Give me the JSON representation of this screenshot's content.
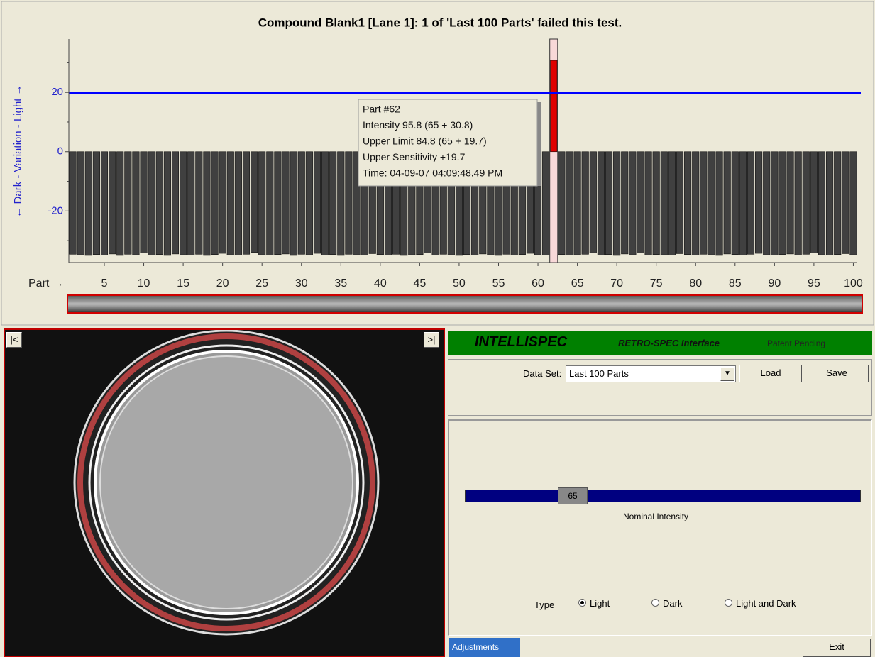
{
  "chart_data": {
    "type": "bar",
    "title": "Compound Blank1 [Lane 1]:   1 of  'Last 100 Parts'  failed this test.",
    "x_label": "Part →",
    "y_label": "← Dark - Variation - Light →",
    "x": [
      1,
      2,
      3,
      4,
      5,
      6,
      7,
      8,
      9,
      10,
      11,
      12,
      13,
      14,
      15,
      16,
      17,
      18,
      19,
      20,
      21,
      22,
      23,
      24,
      25,
      26,
      27,
      28,
      29,
      30,
      31,
      32,
      33,
      34,
      35,
      36,
      37,
      38,
      39,
      40,
      41,
      42,
      43,
      44,
      45,
      46,
      47,
      48,
      49,
      50,
      51,
      52,
      53,
      54,
      55,
      56,
      57,
      58,
      59,
      60,
      61,
      62,
      63,
      64,
      65,
      66,
      67,
      68,
      69,
      70,
      71,
      72,
      73,
      74,
      75,
      76,
      77,
      78,
      79,
      80,
      81,
      82,
      83,
      84,
      85,
      86,
      87,
      88,
      89,
      90,
      91,
      92,
      93,
      94,
      95,
      96,
      97,
      98,
      99,
      100
    ],
    "values": [
      -34.6,
      -34.8,
      -35.0,
      -34.7,
      -34.9,
      -34.5,
      -35.0,
      -34.6,
      -34.8,
      -34.2,
      -34.9,
      -34.7,
      -35.0,
      -34.5,
      -34.8,
      -34.9,
      -34.6,
      -35.0,
      -34.7,
      -34.3,
      -34.8,
      -34.9,
      -34.6,
      -34.0,
      -34.8,
      -34.9,
      -34.7,
      -34.5,
      -35.0,
      -34.6,
      -34.8,
      -34.3,
      -34.9,
      -34.7,
      -35.0,
      -34.6,
      -34.8,
      -34.9,
      -34.4,
      -34.7,
      -34.9,
      -34.6,
      -35.0,
      -34.8,
      -34.7,
      -34.2,
      -34.9,
      -34.6,
      -34.8,
      -35.0,
      -34.7,
      -34.9,
      -34.5,
      -34.8,
      -35.0,
      -34.6,
      -34.9,
      -34.7,
      -34.3,
      -34.8,
      -34.9,
      30.8,
      -34.7,
      -34.9,
      -34.8,
      -34.6,
      -34.1,
      -34.9,
      -34.7,
      -35.0,
      -34.5,
      -34.8,
      -34.2,
      -34.9,
      -34.7,
      -34.8,
      -34.9,
      -34.4,
      -34.7,
      -34.9,
      -34.6,
      -34.8,
      -35.0,
      -34.5,
      -34.7,
      -34.9,
      -34.6,
      -34.3,
      -34.8,
      -34.9,
      -34.7,
      -34.5,
      -34.9,
      -34.6,
      -34.2,
      -34.8,
      -34.9,
      -34.7,
      -34.4,
      -34.8
    ],
    "color": "#404040",
    "fail_color": "#e00000",
    "fail_column_color": "#f8d8d8",
    "threshold": 19.7,
    "threshold_color": "#0000ff",
    "xlim": [
      0.5,
      100.5
    ],
    "xticks": [
      5,
      10,
      15,
      20,
      25,
      30,
      35,
      40,
      45,
      50,
      55,
      60,
      65,
      70,
      75,
      80,
      85,
      90,
      95,
      100
    ],
    "ylim": [
      -37.4,
      38
    ],
    "yticks": [
      20,
      0,
      -20
    ],
    "yticks_minor": [
      30,
      10,
      -10,
      -30
    ],
    "tooltip": [
      "Part #62",
      "Intensity 95.8 (65 + 30.8)",
      "Upper Limit 84.8 (65 + 19.7)",
      "Upper Sensitivity +19.7",
      "Time: 04-09-07 04:09:48.49 PM"
    ]
  },
  "image_panel": {
    "prev": "|<",
    "next": ">|"
  },
  "panel": {
    "brand": "INTELLISPEC",
    "subtitle": "RETRO-SPEC Interface",
    "patent": "Patent Pending",
    "data_set_label": "Data Set:",
    "data_set": "Last 100 Parts",
    "load": "Load",
    "save": "Save",
    "slider_value": 65,
    "slider_label": "Nominal Intensity",
    "type_label": "Type",
    "options": [
      "Light",
      "Dark",
      "Light and Dark"
    ],
    "tab": "Adjustments",
    "exit": "Exit"
  }
}
